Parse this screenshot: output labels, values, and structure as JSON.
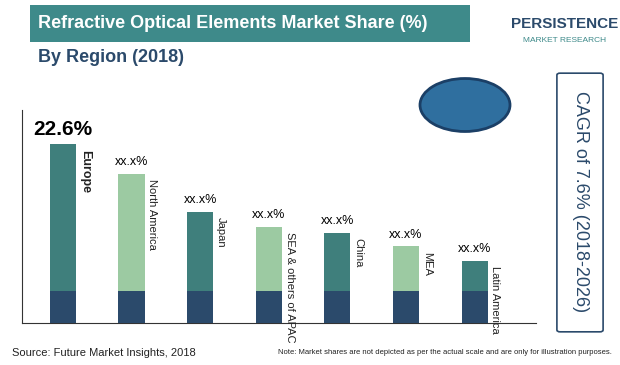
{
  "chart_data": {
    "type": "bar",
    "title": "Refractive Optical Elements Market Share (%)",
    "subtitle": "By Region (2018)",
    "categories": [
      "Europe",
      "North America",
      "Japan",
      "SEA & others of APAC",
      "China",
      "MEA",
      "Latin America"
    ],
    "values": [
      22.6,
      18.9,
      14.1,
      12.2,
      11.4,
      9.7,
      7.9
    ],
    "value_labels": [
      "22.6%",
      "xx.x%",
      "xx.x%",
      "xx.x%",
      "xx.x%",
      "xx.x%",
      "xx.x%"
    ],
    "colors": [
      "#3f7f7c",
      "#9ccaa2",
      "#3f7f7c",
      "#9ccaa2",
      "#3f7f7c",
      "#9ccaa2",
      "#3f7f7c"
    ],
    "ylim": [
      0,
      27
    ],
    "yticks": [],
    "data_labels": true,
    "tick_labels": false,
    "grid": false,
    "annotations": [
      "Source: Future Market Insights, 2018",
      "Note: Market shares are not depicted as per the actual scale and are only for illustration purposes.",
      "CAGR of 7.6% (2018-2026)",
      "PERSISTENCE",
      "MARKET RESEARCH"
    ]
  }
}
